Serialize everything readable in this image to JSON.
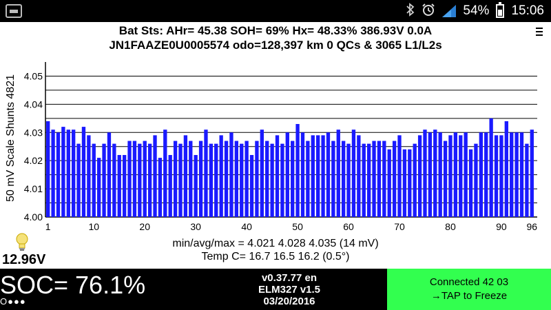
{
  "statusbar": {
    "battery_pct": "54%",
    "battery_level": 0.54,
    "time": "15:06",
    "icons": [
      "gallery-icon",
      "bluetooth-icon",
      "alarm-icon",
      "signal-icon",
      "battery-icon"
    ]
  },
  "header": {
    "line1": "Bat Sts:  AHr= 45.38  SOH= 69%   Hx= 48.33%   386.93V 0.0A",
    "line2": "JN1FAAZE0U0005574 odo=128,397 km  0 QCs & 3065 L1/L2s"
  },
  "chart_data": {
    "type": "bar",
    "ylabel": "50 mV Scale   Shunts 4821",
    "ylim": [
      4.0,
      4.055
    ],
    "y_ticks": [
      "4.00",
      "4.01",
      "4.02",
      "4.03",
      "4.04",
      "4.05"
    ],
    "x_ticks": [
      "1",
      "10",
      "20",
      "30",
      "40",
      "50",
      "60",
      "70",
      "80",
      "90",
      "96"
    ],
    "bar_color": "#1a1aff",
    "x": [
      1,
      2,
      3,
      4,
      5,
      6,
      7,
      8,
      9,
      10,
      11,
      12,
      13,
      14,
      15,
      16,
      17,
      18,
      19,
      20,
      21,
      22,
      23,
      24,
      25,
      26,
      27,
      28,
      29,
      30,
      31,
      32,
      33,
      34,
      35,
      36,
      37,
      38,
      39,
      40,
      41,
      42,
      43,
      44,
      45,
      46,
      47,
      48,
      49,
      50,
      51,
      52,
      53,
      54,
      55,
      56,
      57,
      58,
      59,
      60,
      61,
      62,
      63,
      64,
      65,
      66,
      67,
      68,
      69,
      70,
      71,
      72,
      73,
      74,
      75,
      76,
      77,
      78,
      79,
      80,
      81,
      82,
      83,
      84,
      85,
      86,
      87,
      88,
      89,
      90,
      91,
      92,
      93,
      94,
      95,
      96
    ],
    "values": [
      4.034,
      4.031,
      4.03,
      4.032,
      4.031,
      4.031,
      4.026,
      4.032,
      4.029,
      4.026,
      4.021,
      4.026,
      4.03,
      4.026,
      4.022,
      4.022,
      4.027,
      4.027,
      4.026,
      4.027,
      4.026,
      4.029,
      4.021,
      4.031,
      4.022,
      4.027,
      4.026,
      4.029,
      4.027,
      4.022,
      4.027,
      4.031,
      4.026,
      4.026,
      4.029,
      4.027,
      4.03,
      4.027,
      4.026,
      4.027,
      4.022,
      4.027,
      4.031,
      4.027,
      4.026,
      4.029,
      4.026,
      4.03,
      4.027,
      4.033,
      4.03,
      4.027,
      4.029,
      4.029,
      4.029,
      4.03,
      4.027,
      4.031,
      4.027,
      4.026,
      4.031,
      4.029,
      4.026,
      4.026,
      4.027,
      4.027,
      4.027,
      4.024,
      4.027,
      4.029,
      4.024,
      4.024,
      4.026,
      4.029,
      4.031,
      4.03,
      4.031,
      4.03,
      4.027,
      4.029,
      4.03,
      4.029,
      4.03,
      4.024,
      4.026,
      4.03,
      4.03,
      4.035,
      4.029,
      4.029,
      4.034,
      4.03,
      4.03,
      4.03,
      4.026,
      4.031
    ],
    "min_avg_max": "min/avg/max = 4.021  4.028  4.035   (14 mV)",
    "temp": "Temp C= 16.7   16.5   16.2   (0.5°)"
  },
  "left_panel": {
    "voltage": "12.96V"
  },
  "bottom": {
    "soc": "SOC= 76.1%",
    "dots": "O●●●",
    "version": "v0.37.77 en",
    "adapter": "ELM327 v1.5",
    "date": "03/20/2016",
    "connect_line1": "Connected 42 03",
    "connect_line2": "→TAP to Freeze"
  }
}
